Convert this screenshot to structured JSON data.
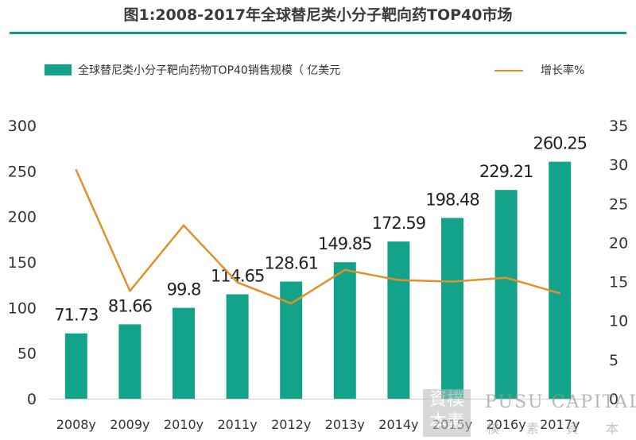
{
  "title": "图1:2008-2017年全球替尼类小分子靶向药TOP40市场",
  "legend": {
    "bar_label": "全球替尼类小分子靶向药物TOP40销售规模（ 亿美元",
    "line_label": "增长率%"
  },
  "colors": {
    "bar": "#12a38a",
    "line": "#e2902a",
    "rule": "#0f9b82",
    "text": "#333333"
  },
  "chart_data": {
    "type": "bar",
    "categories": [
      "2008y",
      "2009y",
      "2010y",
      "2011y",
      "2012y",
      "2013y",
      "2014y",
      "2015y",
      "2016y",
      "2017y"
    ],
    "series": [
      {
        "name": "全球替尼类小分子靶向药物TOP40销售规模（ 亿美元",
        "type": "bar",
        "axis": "left",
        "values": [
          71.73,
          81.66,
          99.8,
          114.65,
          128.61,
          149.85,
          172.59,
          198.48,
          229.21,
          260.25
        ],
        "labels": [
          "71.73",
          "81.66",
          "99.8",
          "114.65",
          "128.61",
          "149.85",
          "172.59",
          "198.48",
          "229.21",
          "260.25"
        ]
      },
      {
        "name": "增长率%",
        "type": "line",
        "axis": "right",
        "values": [
          29.3,
          13.8,
          22.2,
          14.9,
          12.2,
          16.5,
          15.2,
          15.0,
          15.5,
          13.5
        ]
      }
    ],
    "y_left": {
      "min": 0,
      "max": 300,
      "ticks": [
        "0",
        "50",
        "100",
        "150",
        "200",
        "250",
        "300"
      ]
    },
    "y_right": {
      "min": 0,
      "max": 35,
      "ticks": [
        "0",
        "5",
        "10",
        "15",
        "20",
        "25",
        "30",
        "35"
      ]
    },
    "grid": false,
    "legend_position": "top"
  },
  "watermark": {
    "seal": "資樸\n本素",
    "text": "PUSU CAPITAL",
    "sub": "樸素資本"
  }
}
